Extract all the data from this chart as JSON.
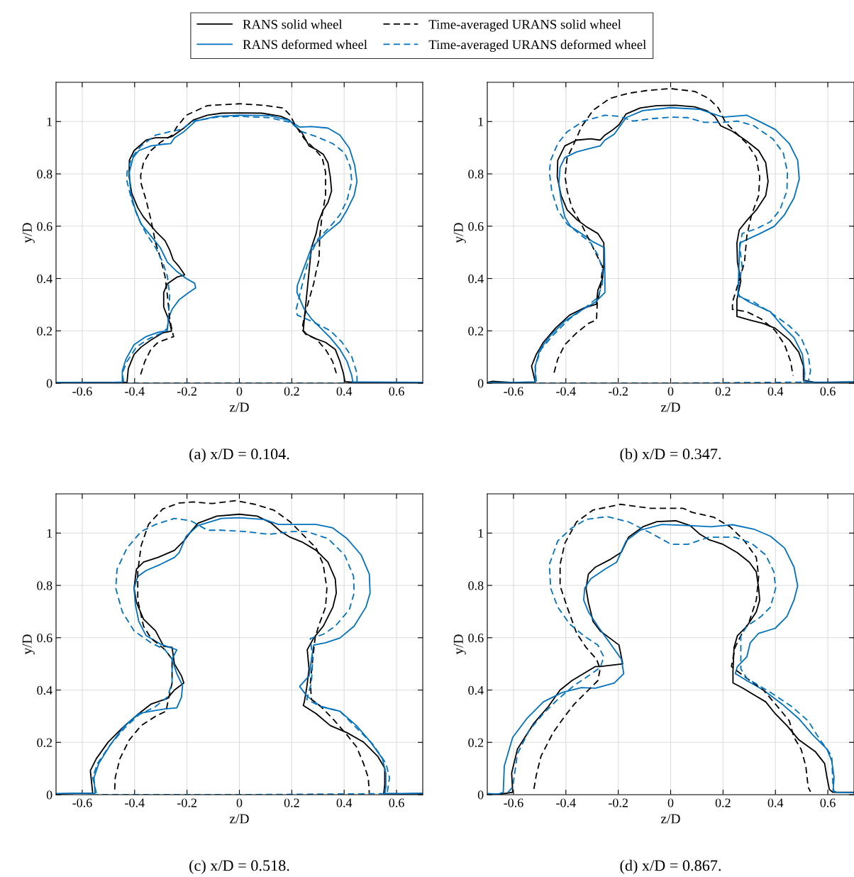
{
  "chart_data": [
    {
      "type": "line",
      "title": "(a) x/D = 0.104.",
      "xlabel": "z/D",
      "ylabel": "y/D",
      "xlim": [
        -0.7,
        0.7
      ],
      "ylim": [
        0,
        1.15
      ],
      "xticks": [
        -0.6,
        -0.4,
        -0.2,
        0,
        0.2,
        0.4,
        0.6
      ],
      "yticks": [
        0,
        0.2,
        0.4,
        0.6,
        0.8,
        1
      ],
      "grid": true,
      "legend": "top",
      "series": [
        {
          "name": "RANS solid wheel",
          "color": "#000000",
          "line_style": "solid",
          "x": [
            -0.7,
            -0.5,
            -0.429,
            -0.424,
            -0.402,
            -0.375,
            -0.338,
            -0.293,
            -0.259,
            -0.266,
            -0.289,
            -0.289,
            -0.275,
            -0.239,
            -0.209,
            -0.23,
            -0.253,
            -0.266,
            -0.284,
            -0.32,
            -0.366,
            -0.388,
            -0.411,
            -0.421,
            -0.42,
            -0.402,
            -0.356,
            -0.32,
            -0.275,
            -0.257,
            -0.212,
            -0.176,
            -0.122,
            -0.068,
            0,
            0.086,
            0.158,
            0.19,
            0.212,
            0.239,
            0.266,
            0.293,
            0.32,
            0.338,
            0.347,
            0.352,
            0.338,
            0.32,
            0.302,
            0.293,
            0.275,
            0.266,
            0.257,
            0.248,
            0.244,
            0.257,
            0.293,
            0.329,
            0.366,
            0.384,
            0.397,
            0.403,
            0.45,
            0.7
          ],
          "values": [
            0.002,
            0.003,
            0.003,
            0.056,
            0.11,
            0.138,
            0.165,
            0.192,
            0.199,
            0.233,
            0.291,
            0.346,
            0.38,
            0.405,
            0.414,
            0.445,
            0.472,
            0.509,
            0.545,
            0.581,
            0.635,
            0.671,
            0.726,
            0.789,
            0.852,
            0.889,
            0.929,
            0.938,
            0.938,
            0.943,
            0.975,
            1.006,
            1.024,
            1.032,
            1.033,
            1.032,
            1.02,
            1.006,
            0.984,
            0.957,
            0.907,
            0.893,
            0.875,
            0.843,
            0.789,
            0.735,
            0.69,
            0.662,
            0.617,
            0.572,
            0.518,
            0.427,
            0.337,
            0.246,
            0.201,
            0.187,
            0.169,
            0.156,
            0.129,
            0.083,
            0.038,
            0.006,
            0.002,
            0.003
          ]
        },
        {
          "name": "RANS deformed wheel",
          "color": "#0072bd",
          "line_style": "solid",
          "x": [
            -0.7,
            -0.5,
            -0.447,
            -0.447,
            -0.433,
            -0.402,
            -0.356,
            -0.311,
            -0.275,
            -0.271,
            -0.257,
            -0.23,
            -0.194,
            -0.167,
            -0.171,
            -0.203,
            -0.239,
            -0.275,
            -0.302,
            -0.338,
            -0.375,
            -0.397,
            -0.415,
            -0.42,
            -0.406,
            -0.384,
            -0.338,
            -0.284,
            -0.262,
            -0.248,
            -0.212,
            -0.167,
            -0.086,
            0,
            0.113,
            0.185,
            0.23,
            0.275,
            0.338,
            0.384,
            0.42,
            0.44,
            0.449,
            0.438,
            0.411,
            0.384,
            0.329,
            0.275,
            0.248,
            0.221,
            0.22,
            0.248,
            0.275,
            0.311,
            0.347,
            0.384,
            0.411,
            0.429,
            0.433,
            0.5,
            0.7
          ],
          "values": [
            0.003,
            0.002,
            0.004,
            0.047,
            0.092,
            0.147,
            0.178,
            0.194,
            0.201,
            0.246,
            0.282,
            0.319,
            0.346,
            0.364,
            0.382,
            0.4,
            0.427,
            0.463,
            0.518,
            0.563,
            0.608,
            0.662,
            0.726,
            0.807,
            0.862,
            0.889,
            0.907,
            0.914,
            0.916,
            0.938,
            0.961,
            1.002,
            1.02,
            1.024,
            1.023,
            1.006,
            0.979,
            0.981,
            0.975,
            0.948,
            0.898,
            0.834,
            0.771,
            0.717,
            0.662,
            0.617,
            0.572,
            0.518,
            0.445,
            0.373,
            0.346,
            0.282,
            0.246,
            0.21,
            0.174,
            0.129,
            0.083,
            0.029,
            0.004,
            0.004,
            0.003
          ]
        },
        {
          "name": "Time-averaged URANS solid wheel",
          "color": "#000000",
          "line_style": "dashed",
          "x": [
            -0.377,
            -0.361,
            -0.338,
            -0.311,
            -0.275,
            -0.251,
            -0.257,
            -0.266,
            -0.275,
            -0.284,
            -0.302,
            -0.32,
            -0.338,
            -0.356,
            -0.375,
            -0.377,
            -0.366,
            -0.338,
            -0.302,
            -0.257,
            -0.239,
            -0.203,
            -0.122,
            0,
            0.095,
            0.167,
            0.194,
            0.212,
            0.248,
            0.284,
            0.316,
            0.329,
            0.329,
            0.316,
            0.307,
            0.304,
            0.293,
            0.284,
            0.266,
            0.248,
            0.239,
            0.253,
            0.293,
            0.329,
            0.356,
            0.37
          ],
          "values": [
            0.033,
            0.083,
            0.129,
            0.156,
            0.169,
            0.178,
            0.201,
            0.246,
            0.337,
            0.409,
            0.481,
            0.536,
            0.626,
            0.699,
            0.762,
            0.794,
            0.843,
            0.889,
            0.92,
            0.948,
            0.979,
            1.024,
            1.061,
            1.068,
            1.062,
            1.052,
            1.024,
            0.988,
            0.934,
            0.898,
            0.862,
            0.807,
            0.717,
            0.644,
            0.563,
            0.472,
            0.427,
            0.382,
            0.319,
            0.255,
            0.205,
            0.187,
            0.169,
            0.129,
            0.083,
            0.038
          ]
        },
        {
          "name": "Time-averaged URANS deformed wheel",
          "color": "#0072bd",
          "line_style": "dashed",
          "x": [
            -0.442,
            -0.447,
            -0.429,
            -0.393,
            -0.347,
            -0.293,
            -0.275,
            -0.271,
            -0.266,
            -0.275,
            -0.293,
            -0.32,
            -0.356,
            -0.388,
            -0.411,
            -0.429,
            -0.429,
            -0.411,
            -0.375,
            -0.32,
            -0.266,
            -0.221,
            -0.176,
            -0.086,
            0,
            0.113,
            0.194,
            0.239,
            0.293,
            0.356,
            0.402,
            0.424,
            0.429,
            0.411,
            0.384,
            0.347,
            0.302,
            0.275,
            0.257,
            0.239,
            0.217,
            0.221,
            0.275,
            0.347,
            0.392,
            0.429,
            0.449,
            0.449,
            0.449,
            0,
            -0.442
          ],
          "values": [
            0.006,
            0.038,
            0.083,
            0.138,
            0.169,
            0.194,
            0.21,
            0.255,
            0.337,
            0.409,
            0.463,
            0.518,
            0.572,
            0.635,
            0.699,
            0.771,
            0.807,
            0.862,
            0.907,
            0.948,
            0.961,
            0.97,
            1.002,
            1.017,
            1.02,
            1.015,
            0.997,
            0.961,
            0.943,
            0.916,
            0.88,
            0.825,
            0.771,
            0.699,
            0.644,
            0.599,
            0.554,
            0.5,
            0.445,
            0.373,
            0.282,
            0.26,
            0.237,
            0.201,
            0.156,
            0.101,
            0.038,
            0.004,
            0,
            0,
            0
          ]
        }
      ]
    },
    {
      "type": "line",
      "title": "(b) x/D = 0.347.",
      "xlabel": "z/D",
      "ylabel": "y/D",
      "xlim": [
        -0.7,
        0.7
      ],
      "ylim": [
        0,
        1.15
      ],
      "xticks": [
        -0.6,
        -0.4,
        -0.2,
        0,
        0.2,
        0.4,
        0.6
      ],
      "yticks": [
        0,
        0.2,
        0.4,
        0.6,
        0.8,
        1
      ],
      "grid": true,
      "series": [
        {
          "color": "#000000",
          "line_style": "solid",
          "x": [
            -0.7,
            -0.68,
            -0.6,
            -0.517,
            -0.531,
            -0.513,
            -0.486,
            -0.44,
            -0.386,
            -0.332,
            -0.283,
            -0.278,
            -0.26,
            -0.255,
            -0.255,
            -0.278,
            -0.323,
            -0.359,
            -0.395,
            -0.418,
            -0.433,
            -0.431,
            -0.404,
            -0.359,
            -0.305,
            -0.269,
            -0.251,
            -0.224,
            -0.197,
            -0.17,
            -0.116,
            -0.052,
            0.02,
            0.092,
            0.137,
            0.169,
            0.191,
            0.236,
            0.291,
            0.336,
            0.363,
            0.372,
            0.363,
            0.327,
            0.291,
            0.262,
            0.253,
            0.255,
            0.268,
            0.253,
            0.253,
            0.3,
            0.354,
            0.399,
            0.453,
            0.489,
            0.507,
            0.507,
            0.55,
            0.7
          ],
          "values": [
            0.003,
            0.007,
            0.002,
            0.004,
            0.065,
            0.11,
            0.156,
            0.21,
            0.26,
            0.287,
            0.302,
            0.355,
            0.4,
            0.454,
            0.536,
            0.572,
            0.599,
            0.626,
            0.662,
            0.717,
            0.789,
            0.852,
            0.907,
            0.929,
            0.934,
            0.929,
            0.948,
            0.966,
            0.988,
            1.029,
            1.052,
            1.061,
            1.062,
            1.056,
            1.042,
            1.02,
            0.984,
            0.963,
            0.925,
            0.889,
            0.843,
            0.771,
            0.717,
            0.662,
            0.622,
            0.586,
            0.536,
            0.463,
            0.391,
            0.319,
            0.255,
            0.242,
            0.228,
            0.21,
            0.165,
            0.119,
            0.065,
            0.011,
            0.003,
            0.004
          ]
        },
        {
          "color": "#0072bd",
          "line_style": "solid",
          "x": [
            -0.7,
            -0.6,
            -0.517,
            -0.517,
            -0.499,
            -0.458,
            -0.404,
            -0.35,
            -0.287,
            -0.251,
            -0.251,
            -0.253,
            -0.296,
            -0.341,
            -0.382,
            -0.404,
            -0.418,
            -0.427,
            -0.422,
            -0.404,
            -0.359,
            -0.305,
            -0.269,
            -0.251,
            -0.215,
            -0.17,
            -0.106,
            0,
            0.11,
            0.164,
            0.2,
            0.291,
            0.336,
            0.399,
            0.453,
            0.485,
            0.491,
            0.471,
            0.435,
            0.395,
            0.341,
            0.264,
            0.26,
            0.257,
            0.3,
            0.381,
            0.426,
            0.471,
            0.503,
            0.512,
            0.509,
            0.6,
            0.7
          ],
          "values": [
            0.002,
            0.003,
            0.004,
            0.065,
            0.129,
            0.183,
            0.237,
            0.273,
            0.31,
            0.346,
            0.4,
            0.518,
            0.54,
            0.572,
            0.599,
            0.635,
            0.699,
            0.762,
            0.825,
            0.862,
            0.884,
            0.898,
            0.907,
            0.929,
            0.952,
            1.015,
            1.042,
            1.053,
            1.047,
            1.029,
            1.017,
            1.024,
            1.002,
            0.97,
            0.916,
            0.852,
            0.78,
            0.708,
            0.644,
            0.599,
            0.572,
            0.536,
            0.427,
            0.337,
            0.31,
            0.273,
            0.219,
            0.174,
            0.11,
            0.038,
            0.004,
            0.003,
            0.005
          ]
        },
        {
          "color": "#000000",
          "line_style": "dashed",
          "x": [
            -0.445,
            -0.431,
            -0.404,
            -0.359,
            -0.314,
            -0.283,
            -0.28,
            -0.269,
            -0.26,
            -0.278,
            -0.305,
            -0.341,
            -0.377,
            -0.395,
            -0.403,
            -0.395,
            -0.377,
            -0.341,
            -0.296,
            -0.233,
            -0.161,
            -0.088,
            0,
            0.092,
            0.146,
            0.182,
            0.209,
            0.245,
            0.291,
            0.327,
            0.34,
            0.336,
            0.309,
            0.291,
            0.282,
            0.264,
            0.236,
            0.236,
            0.291,
            0.345,
            0.399,
            0.435,
            0.458,
            0.467
          ],
          "values": [
            0.04,
            0.092,
            0.147,
            0.192,
            0.228,
            0.242,
            0.31,
            0.355,
            0.445,
            0.481,
            0.536,
            0.608,
            0.671,
            0.735,
            0.789,
            0.862,
            0.898,
            0.979,
            1.043,
            1.088,
            1.108,
            1.119,
            1.126,
            1.115,
            1.088,
            1.052,
            0.997,
            0.961,
            0.916,
            0.862,
            0.789,
            0.717,
            0.644,
            0.563,
            0.463,
            0.4,
            0.31,
            0.282,
            0.273,
            0.246,
            0.201,
            0.147,
            0.083,
            0.029
          ]
        },
        {
          "color": "#0072bd",
          "line_style": "dashed",
          "x": [
            -0.513,
            -0.517,
            -0.495,
            -0.449,
            -0.386,
            -0.323,
            -0.278,
            -0.26,
            -0.26,
            -0.278,
            -0.305,
            -0.35,
            -0.395,
            -0.431,
            -0.454,
            -0.463,
            -0.458,
            -0.431,
            -0.395,
            -0.332,
            -0.251,
            -0.197,
            -0.143,
            -0.07,
            0,
            0.065,
            0.128,
            0.2,
            0.255,
            0.318,
            0.39,
            0.43,
            0.446,
            0.444,
            0.417,
            0.381,
            0.327,
            0.273,
            0.264,
            0.273,
            0.255,
            0.264,
            0.318,
            0.39,
            0.453,
            0.498,
            0.525,
            0.534,
            0.525,
            0,
            -0.513
          ],
          "values": [
            0.006,
            0.065,
            0.129,
            0.183,
            0.246,
            0.291,
            0.328,
            0.382,
            0.436,
            0.49,
            0.536,
            0.572,
            0.608,
            0.662,
            0.735,
            0.807,
            0.852,
            0.916,
            0.961,
            1.002,
            1.024,
            1.02,
            1.002,
            1.011,
            1.017,
            1.015,
            0.997,
            0.997,
            1.002,
            0.984,
            0.934,
            0.88,
            0.807,
            0.735,
            0.662,
            0.617,
            0.59,
            0.572,
            0.518,
            0.445,
            0.355,
            0.328,
            0.31,
            0.264,
            0.219,
            0.174,
            0.11,
            0.047,
            0.004,
            0,
            0
          ]
        }
      ]
    },
    {
      "type": "line",
      "title": "(c) x/D = 0.518.",
      "xlabel": "z/D",
      "ylabel": "y/D",
      "xlim": [
        -0.7,
        0.7
      ],
      "ylim": [
        0,
        1.15
      ],
      "xticks": [
        -0.6,
        -0.4,
        -0.2,
        0,
        0.2,
        0.4,
        0.6
      ],
      "yticks": [
        0,
        0.2,
        0.4,
        0.6,
        0.8,
        1
      ],
      "grid": true,
      "series": [
        {
          "color": "#000000",
          "line_style": "solid",
          "x": [
            -0.7,
            -0.62,
            -0.56,
            -0.569,
            -0.546,
            -0.501,
            -0.447,
            -0.384,
            -0.338,
            -0.275,
            -0.248,
            -0.212,
            -0.221,
            -0.248,
            -0.257,
            -0.289,
            -0.32,
            -0.366,
            -0.393,
            -0.402,
            -0.393,
            -0.366,
            -0.311,
            -0.248,
            -0.212,
            -0.185,
            -0.158,
            -0.086,
            0,
            0.068,
            0.122,
            0.158,
            0.194,
            0.239,
            0.293,
            0.338,
            0.366,
            0.37,
            0.357,
            0.32,
            0.284,
            0.259,
            0.266,
            0.257,
            0.248,
            0.244,
            0.293,
            0.347,
            0.411,
            0.474,
            0.528,
            0.555,
            0.555,
            0.551,
            0.62,
            0.7
          ],
          "values": [
            0.002,
            0.005,
            0.006,
            0.092,
            0.138,
            0.201,
            0.255,
            0.31,
            0.346,
            0.368,
            0.4,
            0.427,
            0.454,
            0.5,
            0.563,
            0.567,
            0.626,
            0.671,
            0.735,
            0.789,
            0.862,
            0.889,
            0.907,
            0.934,
            0.97,
            1.006,
            1.038,
            1.065,
            1.072,
            1.065,
            1.038,
            1.006,
            0.984,
            0.966,
            0.934,
            0.889,
            0.825,
            0.771,
            0.717,
            0.644,
            0.599,
            0.554,
            0.481,
            0.409,
            0.355,
            0.341,
            0.31,
            0.264,
            0.237,
            0.201,
            0.147,
            0.101,
            0.038,
            0.004,
            0.003,
            0.004
          ]
        },
        {
          "color": "#0072bd",
          "line_style": "solid",
          "x": [
            -0.7,
            -0.62,
            -0.551,
            -0.555,
            -0.537,
            -0.492,
            -0.438,
            -0.384,
            -0.338,
            -0.284,
            -0.239,
            -0.221,
            -0.217,
            -0.239,
            -0.257,
            -0.239,
            -0.266,
            -0.302,
            -0.356,
            -0.384,
            -0.397,
            -0.402,
            -0.388,
            -0.356,
            -0.302,
            -0.248,
            -0.23,
            -0.203,
            -0.158,
            -0.068,
            0,
            0.095,
            0.149,
            0.248,
            0.293,
            0.356,
            0.411,
            0.465,
            0.496,
            0.499,
            0.483,
            0.438,
            0.384,
            0.329,
            0.284,
            0.275,
            0.266,
            0.23,
            0.257,
            0.311,
            0.384,
            0.447,
            0.501,
            0.546,
            0.559,
            0.559,
            0.555,
            0.62,
            0.7
          ],
          "values": [
            0.004,
            0.006,
            0.004,
            0.065,
            0.119,
            0.192,
            0.264,
            0.31,
            0.319,
            0.328,
            0.332,
            0.373,
            0.418,
            0.463,
            0.518,
            0.554,
            0.563,
            0.576,
            0.608,
            0.662,
            0.726,
            0.789,
            0.834,
            0.857,
            0.88,
            0.907,
            0.925,
            0.988,
            1.029,
            1.056,
            1.059,
            1.052,
            1.033,
            1.033,
            1.033,
            1.02,
            0.979,
            0.916,
            0.843,
            0.771,
            0.717,
            0.644,
            0.599,
            0.581,
            0.572,
            0.518,
            0.454,
            0.414,
            0.378,
            0.337,
            0.319,
            0.264,
            0.201,
            0.138,
            0.083,
            0.029,
            0.004,
            0.004,
            0.006
          ]
        },
        {
          "color": "#000000",
          "line_style": "dashed",
          "x": [
            -0.476,
            -0.474,
            -0.456,
            -0.42,
            -0.375,
            -0.32,
            -0.28,
            -0.271,
            -0.257,
            -0.257,
            -0.284,
            -0.338,
            -0.366,
            -0.388,
            -0.388,
            -0.375,
            -0.347,
            -0.293,
            -0.23,
            -0.176,
            -0.104,
            -0.014,
            0.059,
            0.131,
            0.194,
            0.248,
            0.293,
            0.32,
            0.334,
            0.329,
            0.302,
            0.289,
            0.28,
            0.271,
            0.275,
            0.311,
            0.356,
            0.411,
            0.447,
            0.474,
            0.492,
            0.496
          ],
          "values": [
            0.02,
            0.065,
            0.138,
            0.21,
            0.264,
            0.3,
            0.319,
            0.364,
            0.427,
            0.518,
            0.554,
            0.599,
            0.644,
            0.744,
            0.852,
            0.952,
            1.033,
            1.092,
            1.115,
            1.119,
            1.113,
            1.124,
            1.11,
            1.088,
            1.043,
            0.988,
            0.943,
            0.88,
            0.789,
            0.717,
            0.644,
            0.599,
            0.518,
            0.427,
            0.364,
            0.337,
            0.291,
            0.228,
            0.183,
            0.119,
            0.065,
            0.006
          ]
        },
        {
          "color": "#0072bd",
          "line_style": "dashed",
          "x": [
            -0.546,
            -0.56,
            -0.542,
            -0.492,
            -0.438,
            -0.384,
            -0.32,
            -0.275,
            -0.257,
            -0.257,
            -0.284,
            -0.338,
            -0.402,
            -0.447,
            -0.472,
            -0.467,
            -0.429,
            -0.375,
            -0.32,
            -0.248,
            -0.185,
            -0.122,
            -0.068,
            0.023,
            0.113,
            0.203,
            0.257,
            0.338,
            0.402,
            0.436,
            0.438,
            0.42,
            0.366,
            0.32,
            0.271,
            0.28,
            0.275,
            0.257,
            0.311,
            0.384,
            0.447,
            0.51,
            0.56,
            0.573,
            0.564,
            0,
            -0.546
          ],
          "values": [
            0.006,
            0.065,
            0.119,
            0.192,
            0.255,
            0.305,
            0.337,
            0.373,
            0.427,
            0.518,
            0.554,
            0.581,
            0.626,
            0.699,
            0.789,
            0.862,
            0.943,
            1.006,
            1.033,
            1.056,
            1.047,
            1.011,
            1.011,
            1.006,
            0.995,
            1.006,
            1.006,
            0.979,
            0.916,
            0.834,
            0.771,
            0.708,
            0.644,
            0.613,
            0.597,
            0.518,
            0.427,
            0.364,
            0.337,
            0.319,
            0.255,
            0.192,
            0.119,
            0.065,
            0.004,
            0,
            0
          ]
        }
      ]
    },
    {
      "type": "line",
      "title": "(d) x/D = 0.867.",
      "xlabel": "z/D",
      "ylabel": "y/D",
      "xlim": [
        -0.7,
        0.7
      ],
      "ylim": [
        0,
        1.15
      ],
      "xticks": [
        -0.6,
        -0.4,
        -0.2,
        0,
        0.2,
        0.4,
        0.6
      ],
      "yticks": [
        0,
        0.2,
        0.4,
        0.6,
        0.8,
        1
      ],
      "grid": true,
      "series": [
        {
          "color": "#000000",
          "line_style": "solid",
          "x": [
            -0.7,
            -0.65,
            -0.603,
            -0.607,
            -0.585,
            -0.522,
            -0.467,
            -0.422,
            -0.377,
            -0.332,
            -0.287,
            -0.269,
            -0.183,
            -0.197,
            -0.233,
            -0.269,
            -0.296,
            -0.314,
            -0.323,
            -0.314,
            -0.287,
            -0.233,
            -0.188,
            -0.161,
            -0.106,
            -0.052,
            0.02,
            0.074,
            0.11,
            0.146,
            0.2,
            0.255,
            0.3,
            0.327,
            0.336,
            0.34,
            0.327,
            0.291,
            0.255,
            0.242,
            0.238,
            0.238,
            0.273,
            0.318,
            0.363,
            0.399,
            0.444,
            0.489,
            0.552,
            0.588,
            0.597,
            0.606,
            0.62,
            0.7
          ],
          "values": [
            0.003,
            0.002,
            0.009,
            0.083,
            0.174,
            0.273,
            0.337,
            0.4,
            0.436,
            0.463,
            0.49,
            0.49,
            0.5,
            0.572,
            0.599,
            0.626,
            0.662,
            0.735,
            0.789,
            0.843,
            0.87,
            0.898,
            0.927,
            0.984,
            1.024,
            1.044,
            1.047,
            1.029,
            0.997,
            0.975,
            0.957,
            0.925,
            0.889,
            0.852,
            0.789,
            0.744,
            0.699,
            0.644,
            0.608,
            0.563,
            0.472,
            0.427,
            0.409,
            0.382,
            0.355,
            0.31,
            0.264,
            0.21,
            0.165,
            0.119,
            0.065,
            0.02,
            0.009,
            0.009
          ]
        },
        {
          "color": "#0072bd",
          "line_style": "solid",
          "x": [
            -0.7,
            -0.66,
            -0.639,
            -0.635,
            -0.603,
            -0.549,
            -0.486,
            -0.413,
            -0.341,
            -0.287,
            -0.215,
            -0.179,
            -0.188,
            -0.233,
            -0.278,
            -0.314,
            -0.332,
            -0.328,
            -0.305,
            -0.251,
            -0.206,
            -0.17,
            -0.116,
            -0.034,
            0.065,
            0.155,
            0.236,
            0.318,
            0.381,
            0.435,
            0.471,
            0.485,
            0.471,
            0.444,
            0.399,
            0.336,
            0.304,
            0.291,
            0.255,
            0.247,
            0.291,
            0.354,
            0.426,
            0.489,
            0.543,
            0.597,
            0.615,
            0.624,
            0.62,
            0.634,
            0.7
          ],
          "values": [
            0.004,
            0.002,
            0.009,
            0.11,
            0.219,
            0.291,
            0.355,
            0.391,
            0.409,
            0.407,
            0.427,
            0.463,
            0.518,
            0.581,
            0.644,
            0.699,
            0.744,
            0.789,
            0.825,
            0.862,
            0.889,
            0.97,
            1.011,
            1.033,
            1.029,
            1.024,
            1.032,
            1.015,
            0.988,
            0.943,
            0.87,
            0.798,
            0.744,
            0.681,
            0.636,
            0.617,
            0.581,
            0.527,
            0.49,
            0.463,
            0.436,
            0.4,
            0.346,
            0.291,
            0.228,
            0.174,
            0.129,
            0.065,
            0.015,
            0.009,
            0.008
          ]
        },
        {
          "color": "#000000",
          "line_style": "dashed",
          "x": [
            -0.522,
            -0.513,
            -0.495,
            -0.449,
            -0.404,
            -0.368,
            -0.314,
            -0.278,
            -0.269,
            -0.283,
            -0.323,
            -0.359,
            -0.395,
            -0.422,
            -0.422,
            -0.404,
            -0.359,
            -0.296,
            -0.192,
            -0.079,
            0.047,
            0.083,
            0.164,
            0.227,
            0.282,
            0.327,
            0.336,
            0.327,
            0.3,
            0.268,
            0.246,
            0.232,
            0.255,
            0.291,
            0.354,
            0.408,
            0.453,
            0.471,
            0.498,
            0.516,
            0.525,
            0.534
          ],
          "values": [
            0.022,
            0.074,
            0.147,
            0.237,
            0.3,
            0.346,
            0.4,
            0.436,
            0.481,
            0.518,
            0.563,
            0.617,
            0.717,
            0.798,
            0.88,
            0.961,
            1.043,
            1.088,
            1.11,
            1.095,
            1.095,
            1.079,
            1.061,
            1.024,
            0.97,
            0.907,
            0.834,
            0.744,
            0.662,
            0.608,
            0.563,
            0.49,
            0.472,
            0.445,
            0.4,
            0.337,
            0.282,
            0.219,
            0.174,
            0.11,
            0.029,
            0.011
          ]
        },
        {
          "color": "#0072bd",
          "line_style": "dashed",
          "x": [
            -0.621,
            -0.603,
            -0.585,
            -0.54,
            -0.486,
            -0.431,
            -0.368,
            -0.314,
            -0.269,
            -0.255,
            -0.278,
            -0.332,
            -0.386,
            -0.431,
            -0.458,
            -0.463,
            -0.431,
            -0.377,
            -0.323,
            -0.242,
            -0.161,
            -0.07,
            0.002,
            0.065,
            0.146,
            0.245,
            0.309,
            0.363,
            0.394,
            0.401,
            0.381,
            0.345,
            0.291,
            0.268,
            0.268,
            0.268,
            0.291,
            0.381,
            0.462,
            0.525,
            0.57,
            0.597,
            0.615,
            0.62,
            0.624
          ],
          "values": [
            0.009,
            0.029,
            0.156,
            0.246,
            0.31,
            0.364,
            0.418,
            0.454,
            0.486,
            0.527,
            0.572,
            0.608,
            0.653,
            0.717,
            0.789,
            0.88,
            0.97,
            1.02,
            1.052,
            1.063,
            1.043,
            0.997,
            0.957,
            0.957,
            0.984,
            0.984,
            0.961,
            0.916,
            0.852,
            0.789,
            0.717,
            0.681,
            0.644,
            0.608,
            0.518,
            0.481,
            0.445,
            0.391,
            0.337,
            0.282,
            0.21,
            0.174,
            0.147,
            0.029,
            0.009
          ]
        }
      ]
    }
  ]
}
